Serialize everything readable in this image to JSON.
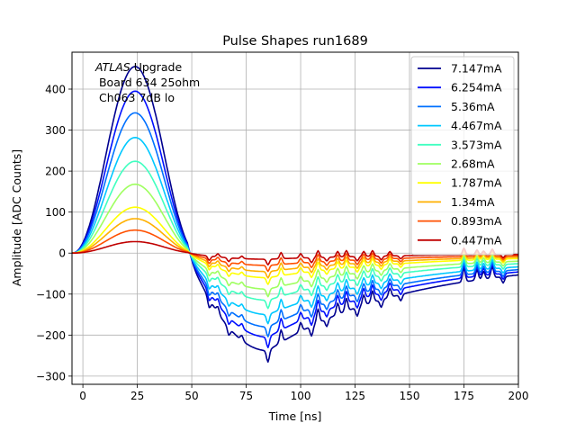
{
  "chart_data": {
    "type": "line",
    "title": "Pulse Shapes run1689",
    "xlabel": "Time [ns]",
    "ylabel": "Amplitude [ADC Counts]",
    "xlim": [
      -5,
      200
    ],
    "ylim": [
      -320,
      490
    ],
    "xticks": [
      0,
      25,
      50,
      75,
      100,
      125,
      150,
      175,
      200
    ],
    "yticks": [
      -300,
      -200,
      -100,
      0,
      100,
      200,
      300,
      400
    ],
    "grid": true,
    "legend_position": "upper-right",
    "annotation": {
      "italic": "ATLAS",
      "rest": " Upgrade",
      "line2": " Board 634 25ohm",
      "line3": " Ch063 7dB lo"
    },
    "series": [
      {
        "name": "7.147mA",
        "color": "#00008f",
        "peak": 455,
        "trough": -238
      },
      {
        "name": "6.254mA",
        "color": "#0010ff",
        "peak": 395,
        "trough": -205
      },
      {
        "name": "5.36mA",
        "color": "#0070ff",
        "peak": 342,
        "trough": -180
      },
      {
        "name": "4.467mA",
        "color": "#00c8ff",
        "peak": 282,
        "trough": -150
      },
      {
        "name": "3.573mA",
        "color": "#40ffc0",
        "peak": 224,
        "trough": -115
      },
      {
        "name": "2.68mA",
        "color": "#9fff60",
        "peak": 168,
        "trough": -88
      },
      {
        "name": "1.787mA",
        "color": "#ffff00",
        "peak": 112,
        "trough": -60
      },
      {
        "name": "1.34mA",
        "color": "#ffb000",
        "peak": 84,
        "trough": -45
      },
      {
        "name": "0.893mA",
        "color": "#ff5000",
        "peak": 56,
        "trough": -30
      },
      {
        "name": "0.447mA",
        "color": "#c00000",
        "peak": 28,
        "trough": -15
      }
    ]
  }
}
